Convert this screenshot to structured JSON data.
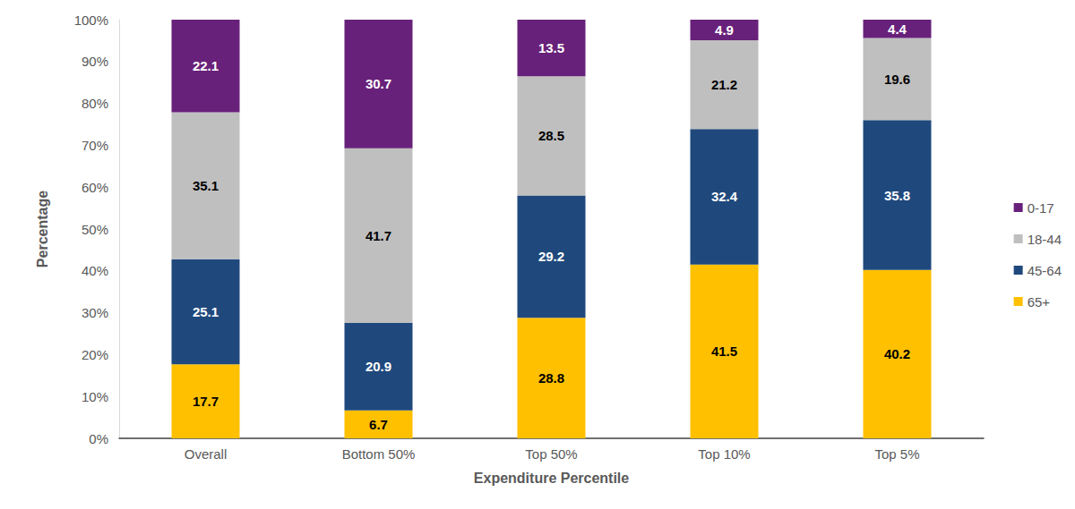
{
  "chart_data": {
    "type": "bar",
    "stacked": true,
    "data_labels": true,
    "grid": false,
    "legend": "right",
    "x_label": "Expenditure Percentile",
    "y_label": "Percentage",
    "categories": [
      "Overall",
      "Bottom 50%",
      "Top 50%",
      "Top 10%",
      "Top 5%"
    ],
    "series": [
      {
        "name": "0-17",
        "color": "#68217a",
        "values": [
          22.1,
          30.7,
          13.5,
          4.9,
          4.4
        ]
      },
      {
        "name": "18-44",
        "color": "#bfbfbf",
        "values": [
          35.1,
          41.7,
          28.5,
          21.2,
          19.6
        ]
      },
      {
        "name": "45-64",
        "color": "#1f497d",
        "values": [
          25.1,
          20.9,
          29.2,
          32.4,
          35.8
        ]
      },
      {
        "name": "65+",
        "color": "#ffc000",
        "values": [
          17.7,
          6.7,
          28.8,
          41.5,
          40.2
        ]
      }
    ],
    "ylim": [
      0,
      100
    ],
    "yticks": [
      {
        "value": 0,
        "label": "0%"
      },
      {
        "value": 10,
        "label": "10%"
      },
      {
        "value": 20,
        "label": "20%"
      },
      {
        "value": 30,
        "label": "30%"
      },
      {
        "value": 40,
        "label": "40%"
      },
      {
        "value": 50,
        "label": "50%"
      },
      {
        "value": 60,
        "label": "60%"
      },
      {
        "value": 70,
        "label": "70%"
      },
      {
        "value": 80,
        "label": "80%"
      },
      {
        "value": 90,
        "label": "90%"
      },
      {
        "value": 100,
        "label": "100%"
      }
    ]
  }
}
